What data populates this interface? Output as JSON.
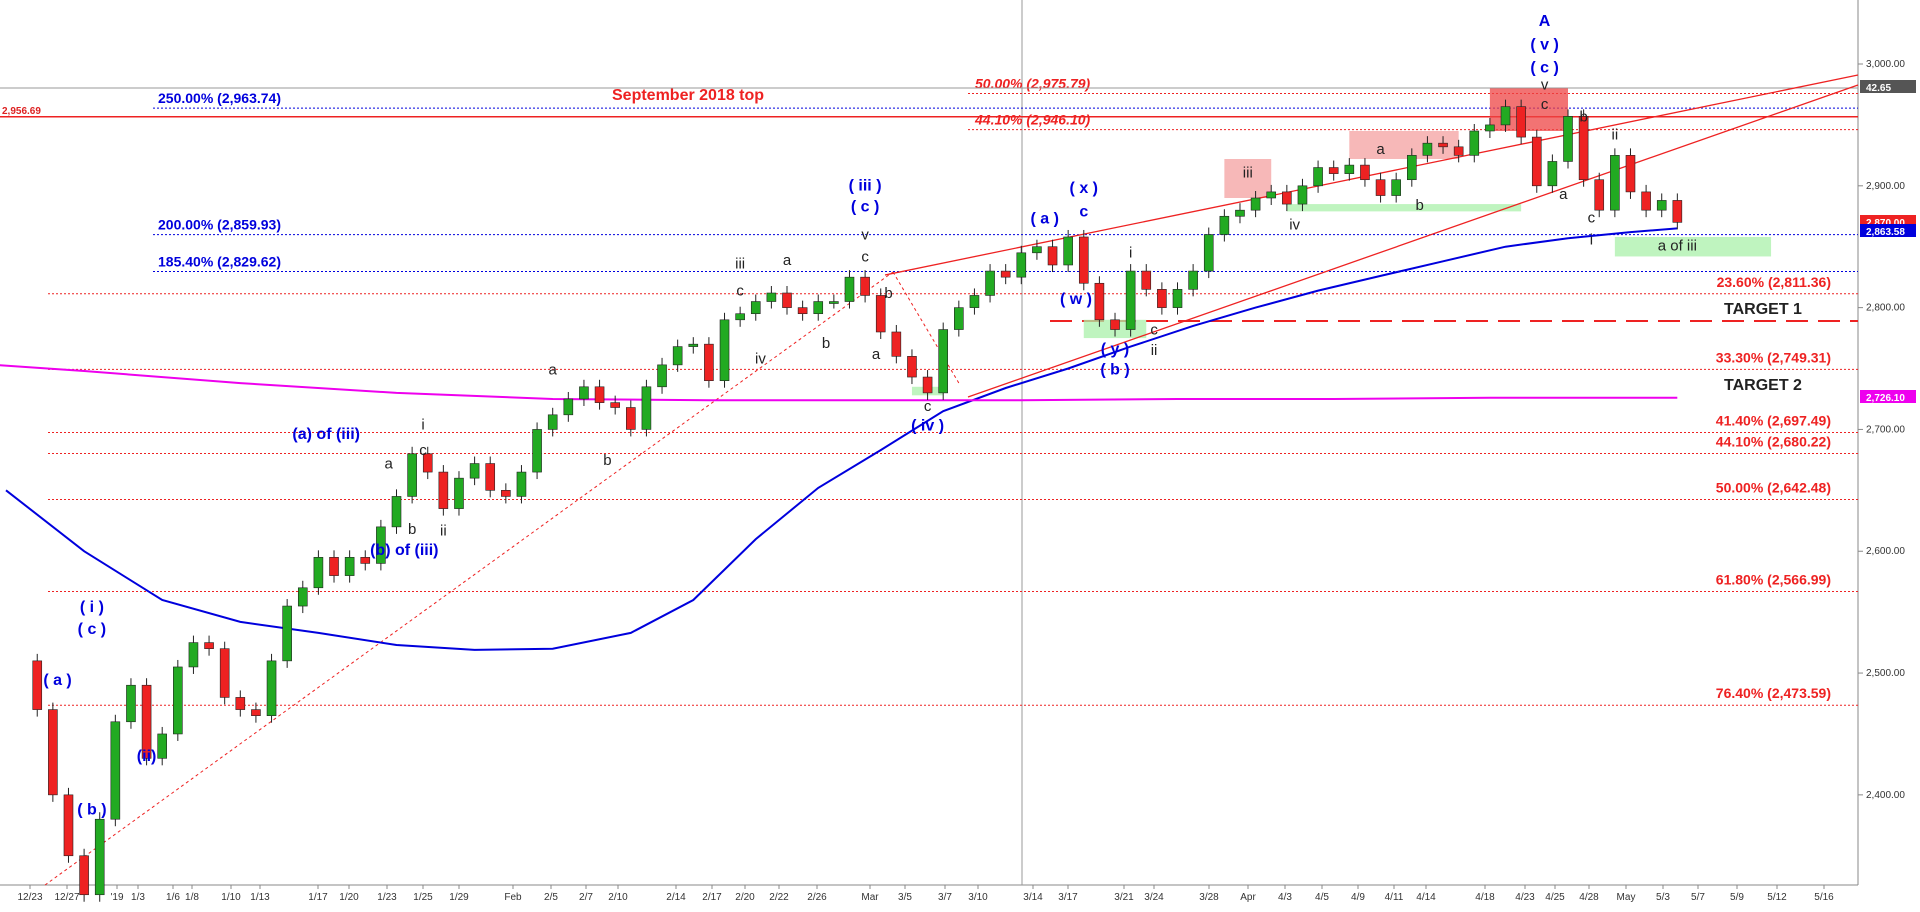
{
  "chart_data": {
    "type": "line",
    "title": "",
    "xlabel": "",
    "ylabel": "",
    "ylim": [
      2300,
      3050
    ],
    "grid": false,
    "y_ticks": [
      "3,000.00",
      "2,900.00",
      "2,800.00",
      "2,700.00",
      "2,600.00",
      "2,500.00",
      "2,400.00"
    ],
    "y_tick_values": [
      3000,
      2900,
      2800,
      2700,
      2600,
      2500,
      2400
    ],
    "x_ticks": [
      "12/23",
      "12/27",
      "'19",
      "1/3",
      "1/6",
      "1/8",
      "1/10",
      "1/13",
      "1/17",
      "1/20",
      "1/23",
      "1/25",
      "1/29",
      "Feb",
      "2/5",
      "2/7",
      "2/10",
      "2/14",
      "2/17",
      "2/20",
      "2/22",
      "2/26",
      "Mar",
      "3/5",
      "3/7",
      "3/10",
      "3/14",
      "3/17",
      "3/21",
      "3/24",
      "3/28",
      "Apr",
      "4/3",
      "4/5",
      "4/9",
      "4/11",
      "4/14",
      "4/18",
      "4/23",
      "4/25",
      "4/28",
      "May",
      "5/3",
      "5/7",
      "5/9",
      "5/12",
      "5/16"
    ],
    "price_path": [
      [
        0,
        2510
      ],
      [
        2,
        2470
      ],
      [
        3,
        2400
      ],
      [
        4,
        2350
      ],
      [
        5,
        2318
      ],
      [
        6,
        2380
      ],
      [
        7,
        2460
      ],
      [
        8,
        2490
      ],
      [
        9,
        2430
      ],
      [
        10,
        2450
      ],
      [
        11,
        2505
      ],
      [
        12,
        2525
      ],
      [
        13,
        2520
      ],
      [
        14,
        2480
      ],
      [
        15,
        2470
      ],
      [
        16,
        2465
      ],
      [
        17,
        2510
      ],
      [
        18,
        2555
      ],
      [
        19,
        2570
      ],
      [
        20,
        2595
      ],
      [
        21,
        2580
      ],
      [
        22,
        2595
      ],
      [
        23,
        2590
      ],
      [
        24,
        2620
      ],
      [
        25,
        2645
      ],
      [
        26,
        2680
      ],
      [
        27,
        2665
      ],
      [
        28,
        2635
      ],
      [
        29,
        2660
      ],
      [
        30,
        2672
      ],
      [
        31,
        2650
      ],
      [
        32,
        2645
      ],
      [
        33,
        2665
      ],
      [
        34,
        2700
      ],
      [
        35,
        2712
      ],
      [
        36,
        2725
      ],
      [
        37,
        2735
      ],
      [
        38,
        2722
      ],
      [
        39,
        2718
      ],
      [
        40,
        2700
      ],
      [
        41,
        2735
      ],
      [
        42,
        2753
      ],
      [
        43,
        2768
      ],
      [
        44,
        2770
      ],
      [
        45,
        2740
      ],
      [
        46,
        2790
      ],
      [
        47,
        2795
      ],
      [
        48,
        2805
      ],
      [
        49,
        2812
      ],
      [
        50,
        2800
      ],
      [
        51,
        2795
      ],
      [
        52,
        2805
      ],
      [
        53,
        2805
      ],
      [
        54,
        2825
      ],
      [
        55,
        2810
      ],
      [
        56,
        2780
      ],
      [
        57,
        2760
      ],
      [
        58,
        2743
      ],
      [
        59,
        2730
      ],
      [
        60,
        2782
      ],
      [
        61,
        2800
      ],
      [
        62,
        2810
      ],
      [
        63,
        2830
      ],
      [
        64,
        2825
      ],
      [
        65,
        2845
      ],
      [
        66,
        2850
      ],
      [
        67,
        2835
      ],
      [
        68,
        2858
      ],
      [
        69,
        2820
      ],
      [
        70,
        2790
      ],
      [
        71,
        2782
      ],
      [
        72,
        2830
      ],
      [
        73,
        2815
      ],
      [
        74,
        2800
      ],
      [
        75,
        2815
      ],
      [
        76,
        2830
      ],
      [
        77,
        2860
      ],
      [
        78,
        2875
      ],
      [
        79,
        2880
      ],
      [
        80,
        2890
      ],
      [
        81,
        2895
      ],
      [
        82,
        2885
      ],
      [
        83,
        2900
      ],
      [
        84,
        2915
      ],
      [
        85,
        2910
      ],
      [
        86,
        2917
      ],
      [
        87,
        2905
      ],
      [
        88,
        2892
      ],
      [
        89,
        2905
      ],
      [
        90,
        2925
      ],
      [
        91,
        2935
      ],
      [
        92,
        2932
      ],
      [
        93,
        2925
      ],
      [
        94,
        2945
      ],
      [
        95,
        2950
      ],
      [
        96,
        2965
      ],
      [
        97,
        2940
      ],
      [
        98,
        2900
      ],
      [
        99,
        2920
      ],
      [
        100,
        2957
      ],
      [
        101,
        2905
      ],
      [
        102,
        2880
      ],
      [
        103,
        2925
      ],
      [
        104,
        2895
      ],
      [
        105,
        2880
      ],
      [
        106,
        2888
      ],
      [
        107,
        2870
      ]
    ],
    "series": [
      {
        "name": "",
        "color": "#0000dd",
        "values": [
          [
            0,
            2650
          ],
          [
            5,
            2600
          ],
          [
            10,
            2560
          ],
          [
            15,
            2542
          ],
          [
            20,
            2533
          ],
          [
            25,
            2523
          ],
          [
            30,
            2519
          ],
          [
            35,
            2520
          ],
          [
            40,
            2533
          ],
          [
            44,
            2560
          ],
          [
            48,
            2610
          ],
          [
            52,
            2652
          ],
          [
            56,
            2683
          ],
          [
            60,
            2715
          ],
          [
            64,
            2734
          ],
          [
            68,
            2750
          ],
          [
            72,
            2768
          ],
          [
            76,
            2785
          ],
          [
            80,
            2800
          ],
          [
            84,
            2814
          ],
          [
            88,
            2826
          ],
          [
            92,
            2838
          ],
          [
            96,
            2850
          ],
          [
            100,
            2857
          ],
          [
            104,
            2862
          ],
          [
            107,
            2865
          ]
        ]
      },
      {
        "name": "",
        "color": "#ee00ee",
        "values": [
          [
            -3,
            2755
          ],
          [
            5,
            2748
          ],
          [
            15,
            2738
          ],
          [
            25,
            2730
          ],
          [
            35,
            2725
          ],
          [
            45,
            2724
          ],
          [
            55,
            2724
          ],
          [
            65,
            2724
          ],
          [
            75,
            2725
          ],
          [
            85,
            2725
          ],
          [
            95,
            2726
          ],
          [
            107,
            2726
          ]
        ]
      }
    ],
    "price_scale_labels": [
      {
        "text": "2,956.69",
        "value": 2956.69,
        "color": "#dd2222"
      },
      {
        "text": "42.65",
        "color": "#555555"
      },
      {
        "text": "2,870.00",
        "value": 2870,
        "color": "#dd2222"
      },
      {
        "text": "2,863.58",
        "value": 2863.58,
        "color": "#0000dd"
      },
      {
        "text": "2,726.10",
        "value": 2726.1,
        "color": "#ee00ee"
      }
    ],
    "fib_levels": [
      {
        "label": "250.00% (2,963.74)",
        "value": 2963.74,
        "color": "#0000dd",
        "side": "left"
      },
      {
        "label": "200.00% (2,859.93)",
        "value": 2859.93,
        "color": "#0000dd",
        "side": "left"
      },
      {
        "label": "185.40% (2,829.62)",
        "value": 2829.62,
        "color": "#0000dd",
        "side": "left"
      },
      {
        "label": "50.00% (2,975.79)",
        "value": 2975.79,
        "color": "#ee2222",
        "side": "mid"
      },
      {
        "label": "44.10% (2,946.10)",
        "value": 2946.1,
        "color": "#ee2222",
        "side": "mid"
      },
      {
        "label": "23.60% (2,811.36)",
        "value": 2811.36,
        "color": "#ee2222",
        "side": "right"
      },
      {
        "label": "33.30% (2,749.31)",
        "value": 2749.31,
        "color": "#ee2222",
        "side": "right"
      },
      {
        "label": "41.40% (2,697.49)",
        "value": 2697.49,
        "color": "#ee2222",
        "side": "right"
      },
      {
        "label": "44.10% (2,680.22)",
        "value": 2680.22,
        "color": "#ee2222",
        "side": "right"
      },
      {
        "label": "50.00% (2,642.48)",
        "value": 2642.48,
        "color": "#ee2222",
        "side": "right"
      },
      {
        "label": "61.80% (2,566.99)",
        "value": 2566.99,
        "color": "#ee2222",
        "side": "right"
      },
      {
        "label": "76.40% (2,473.59)",
        "value": 2473.59,
        "color": "#ee2222",
        "side": "right"
      }
    ],
    "targets": [
      {
        "label": "TARGET 1",
        "value": 2789
      },
      {
        "label": "TARGET 2",
        "value": 2726
      }
    ],
    "reference_line": {
      "label": "September 2018 top",
      "value": 2956.69
    },
    "boxes": [
      {
        "name": "red",
        "x0": 95,
        "x1": 100,
        "y0": 2945,
        "y1": 2980,
        "color": "#ee4444"
      },
      {
        "name": "pink",
        "x0": 86,
        "x1": 93,
        "y0": 2922,
        "y1": 2945,
        "color": "#f4a0a0"
      },
      {
        "name": "pink",
        "x0": 78,
        "x1": 81,
        "y0": 2890,
        "y1": 2922,
        "color": "#f4a0a0"
      },
      {
        "name": "green",
        "x0": 103,
        "x1": 113,
        "y0": 2842,
        "y1": 2858,
        "color": "#aaf0aa"
      },
      {
        "name": "green",
        "x0": 82,
        "x1": 97,
        "y0": 2879,
        "y1": 2885,
        "color": "#aaf0aa"
      },
      {
        "name": "green",
        "x0": 69,
        "x1": 73,
        "y0": 2775,
        "y1": 2790,
        "color": "#aaf0aa"
      },
      {
        "name": "green",
        "x0": 58,
        "x1": 60,
        "y0": 2728,
        "y1": 2735,
        "color": "#aaf0aa"
      }
    ],
    "annotations": [
      {
        "text": "A",
        "x": 98.5,
        "y": 3031,
        "color": "#0000dd"
      },
      {
        "text": "( v )",
        "x": 98.5,
        "y": 3012,
        "color": "#0000dd"
      },
      {
        "text": "( c )",
        "x": 98.5,
        "y": 2993,
        "color": "#0000dd"
      },
      {
        "text": "v",
        "x": 98.5,
        "y": 2979,
        "color": "#222222"
      },
      {
        "text": "c",
        "x": 98.5,
        "y": 2963,
        "color": "#222222"
      },
      {
        "text": "b",
        "x": 101,
        "y": 2953,
        "color": "#222222"
      },
      {
        "text": "ii",
        "x": 103,
        "y": 2938,
        "color": "#222222"
      },
      {
        "text": "a",
        "x": 99.7,
        "y": 2889,
        "color": "#222222"
      },
      {
        "text": "c",
        "x": 101.5,
        "y": 2870,
        "color": "#222222"
      },
      {
        "text": "i",
        "x": 101.5,
        "y": 2852,
        "color": "#222222"
      },
      {
        "text": "a of iii",
        "x": 107,
        "y": 2847,
        "color": "#222222"
      },
      {
        "text": "a",
        "x": 88,
        "y": 2926,
        "color": "#222222"
      },
      {
        "text": "b",
        "x": 90.5,
        "y": 2880,
        "color": "#222222"
      },
      {
        "text": "iii",
        "x": 79.5,
        "y": 2907,
        "color": "#222222"
      },
      {
        "text": "iv",
        "x": 82.5,
        "y": 2864,
        "color": "#222222"
      },
      {
        "text": "( x )",
        "x": 69,
        "y": 2894,
        "color": "#0000dd"
      },
      {
        "text": "c",
        "x": 69,
        "y": 2875,
        "color": "#0000dd"
      },
      {
        "text": "( a )",
        "x": 66.5,
        "y": 2869,
        "color": "#0000dd"
      },
      {
        "text": "( w )",
        "x": 68.5,
        "y": 2803,
        "color": "#0000dd"
      },
      {
        "text": "i",
        "x": 72,
        "y": 2841,
        "color": "#222222"
      },
      {
        "text": "c",
        "x": 73.5,
        "y": 2778,
        "color": "#222222"
      },
      {
        "text": "ii",
        "x": 73.5,
        "y": 2761,
        "color": "#222222"
      },
      {
        "text": "( y )",
        "x": 71,
        "y": 2762,
        "color": "#0000dd"
      },
      {
        "text": "( b )",
        "x": 71,
        "y": 2745,
        "color": "#0000dd"
      },
      {
        "text": "( iii )",
        "x": 55,
        "y": 2896,
        "color": "#0000dd"
      },
      {
        "text": "( c )",
        "x": 55,
        "y": 2879,
        "color": "#0000dd"
      },
      {
        "text": "v",
        "x": 55,
        "y": 2856,
        "color": "#222222"
      },
      {
        "text": "c",
        "x": 55,
        "y": 2838,
        "color": "#222222"
      },
      {
        "text": "b",
        "x": 56.5,
        "y": 2808,
        "color": "#222222"
      },
      {
        "text": "a",
        "x": 55.7,
        "y": 2758,
        "color": "#222222"
      },
      {
        "text": "c",
        "x": 59,
        "y": 2715,
        "color": "#222222"
      },
      {
        "text": "( iv )",
        "x": 59,
        "y": 2699,
        "color": "#0000dd"
      },
      {
        "text": "a",
        "x": 50,
        "y": 2835,
        "color": "#222222"
      },
      {
        "text": "iii",
        "x": 47,
        "y": 2832,
        "color": "#222222"
      },
      {
        "text": "c",
        "x": 47,
        "y": 2810,
        "color": "#222222"
      },
      {
        "text": "iv",
        "x": 48.3,
        "y": 2754,
        "color": "#222222"
      },
      {
        "text": "b",
        "x": 52.5,
        "y": 2767,
        "color": "#222222"
      },
      {
        "text": "a",
        "x": 35,
        "y": 2745,
        "color": "#222222"
      },
      {
        "text": "b",
        "x": 38.5,
        "y": 2671,
        "color": "#222222"
      },
      {
        "text": "(a) of (iii)",
        "x": 20.5,
        "y": 2692,
        "color": "#0000dd"
      },
      {
        "text": "(b) of (iii)",
        "x": 25.5,
        "y": 2597,
        "color": "#0000dd"
      },
      {
        "text": "i",
        "x": 26.7,
        "y": 2700,
        "color": "#222222"
      },
      {
        "text": "c",
        "x": 26.7,
        "y": 2679,
        "color": "#222222"
      },
      {
        "text": "a",
        "x": 24.5,
        "y": 2668,
        "color": "#222222"
      },
      {
        "text": "b",
        "x": 26,
        "y": 2614,
        "color": "#222222"
      },
      {
        "text": "ii",
        "x": 28,
        "y": 2613,
        "color": "#222222"
      },
      {
        "text": "( i )",
        "x": 5.5,
        "y": 2550,
        "color": "#0000dd"
      },
      {
        "text": "( c )",
        "x": 5.5,
        "y": 2532,
        "color": "#0000dd"
      },
      {
        "text": "( a )",
        "x": 3.3,
        "y": 2490,
        "color": "#0000dd"
      },
      {
        "text": "(ii)",
        "x": 9,
        "y": 2428,
        "color": "#0000dd"
      },
      {
        "text": "( b )",
        "x": 5.5,
        "y": 2384,
        "color": "#0000dd"
      }
    ]
  }
}
